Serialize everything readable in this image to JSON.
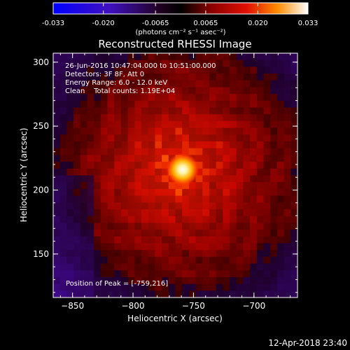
{
  "chart_data": {
    "type": "heatmap",
    "title": "Reconstructed RHESSI Image",
    "xlabel": "Heliocentric X (arcsec)",
    "ylabel": "Heliocentric Y (arcsec)",
    "xlim": [
      -866,
      -664
    ],
    "ylim": [
      116,
      307
    ],
    "x_ticks": [
      -850,
      -800,
      -750,
      -700
    ],
    "y_ticks": [
      150,
      200,
      250,
      300
    ],
    "annotations": [
      "26-Jun-2016 10:47:04.000 to 10:51:00.000",
      "Detectors: 3F 8F, Att 0",
      "Energy Range: 6.0 - 12.0 keV",
      "Clean    Total counts: 1.19E+04"
    ],
    "peak_label": "Position of Peak = [-759,216]",
    "peak": {
      "x": -759,
      "y": 216,
      "value": 0.033
    },
    "colorbar": {
      "ticks": [
        -0.033,
        -0.02,
        -0.0065,
        0.0065,
        0.02,
        0.033
      ],
      "tick_labels": [
        "-0.033",
        "-0.020",
        "-0.0065",
        "0.0065",
        "0.020",
        "0.033"
      ],
      "units": "(photons cm⁻² s⁻¹ asec⁻²)",
      "range": [
        -0.033,
        0.033
      ],
      "colors": [
        "#0000ff",
        "#5000a0",
        "#000000",
        "#a00000",
        "#ff7000",
        "#ffffff"
      ]
    },
    "grid": false
  },
  "footer": {
    "timestamp": "12-Apr-2018 23:40"
  }
}
